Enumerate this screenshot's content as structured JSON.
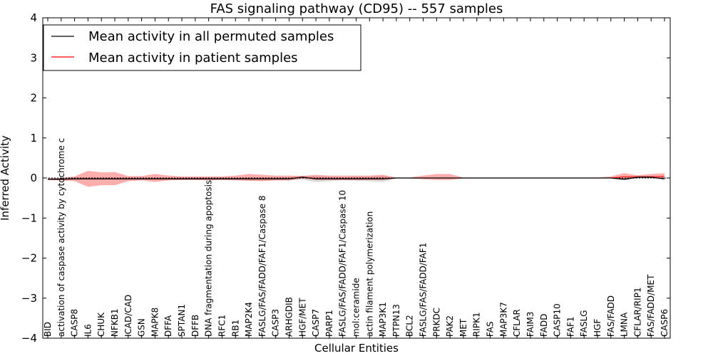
{
  "chart_data": {
    "type": "line",
    "title": "FAS signaling pathway (CD95) -- 557 samples",
    "xlabel": "Cellular Entities",
    "ylabel": "Inferred Activity",
    "ylim": [
      -4,
      4
    ],
    "yticks": [
      "−4",
      "−3",
      "−2",
      "−1",
      "0",
      "1",
      "2",
      "3",
      "4"
    ],
    "ytick_values": [
      -4,
      -3,
      -2,
      -1,
      0,
      1,
      2,
      3,
      4
    ],
    "legend_position": "top-left",
    "categories": [
      "BID",
      "activation of caspase activity by cytochrome c",
      "CASP8",
      "IL6",
      "CHUK",
      "NFKB1",
      "ICAD/CAD",
      "GSN",
      "MAPK8",
      "DFFA",
      "SPTAN1",
      "DFFB",
      "DNA fragmentation during apoptosis",
      "RFC1",
      "RB1",
      "MAP2K4",
      "FASLG/FAS/FADD/FAF1/Caspase 8",
      "CASP3",
      "ARHGDIB",
      "HGF/MET",
      "CASP7",
      "PARP1",
      "FASLG/FAS/FADD/FAF1/Caspase 10",
      "mol:ceramide",
      "actin filament polymerization",
      "MAP3K1",
      "PTPN13",
      "BCL2",
      "FASLG/FAS/FADD/FAF1",
      "PRKDC",
      "PAK2",
      "MET",
      "RIPK1",
      "FAS",
      "MAP3K7",
      "CFLAR",
      "FAIM3",
      "FADD",
      "CASP10",
      "FAF1",
      "FASLG",
      "HGF",
      "FAS/FADD",
      "LMNA",
      "CFLAR/RIP1",
      "FAS/FADD/MET",
      "CASP6"
    ],
    "series": [
      {
        "name": "Mean activity in all permuted samples",
        "color": "#000000",
        "values": [
          -0.03,
          -0.03,
          -0.02,
          -0.02,
          -0.02,
          -0.02,
          -0.02,
          -0.02,
          -0.02,
          -0.02,
          -0.02,
          -0.02,
          -0.02,
          -0.02,
          -0.02,
          -0.02,
          -0.02,
          -0.02,
          -0.02,
          0.02,
          -0.02,
          -0.02,
          -0.02,
          -0.02,
          -0.02,
          -0.02,
          0.0,
          0.0,
          0.0,
          0.0,
          0.0,
          0.0,
          0.0,
          0.0,
          0.0,
          0.0,
          0.0,
          0.0,
          0.0,
          0.0,
          0.0,
          0.0,
          0.0,
          -0.03,
          0.02,
          0.02,
          -0.02
        ],
        "lower": [
          -0.04,
          -0.06,
          -0.05,
          -0.05,
          -0.05,
          -0.05,
          -0.05,
          -0.05,
          -0.05,
          -0.05,
          -0.05,
          -0.05,
          -0.05,
          -0.05,
          -0.05,
          -0.07,
          -0.06,
          -0.06,
          -0.06,
          -0.04,
          -0.1,
          -0.08,
          -0.06,
          -0.07,
          -0.08,
          -0.1,
          -0.01,
          -0.01,
          -0.01,
          -0.01,
          -0.01,
          -0.01,
          -0.01,
          -0.01,
          -0.01,
          -0.01,
          -0.01,
          -0.01,
          -0.01,
          -0.01,
          -0.01,
          -0.01,
          -0.01,
          -0.06,
          -0.01,
          -0.01,
          -0.05
        ],
        "upper": [
          -0.02,
          0.01,
          0.01,
          0.01,
          0.01,
          0.01,
          0.01,
          0.01,
          0.01,
          0.01,
          0.01,
          0.01,
          0.01,
          0.01,
          0.01,
          0.02,
          0.02,
          0.02,
          0.02,
          0.06,
          0.04,
          0.03,
          0.02,
          0.03,
          0.03,
          0.05,
          0.01,
          0.01,
          0.01,
          0.01,
          0.01,
          0.01,
          0.01,
          0.01,
          0.01,
          0.01,
          0.01,
          0.01,
          0.01,
          0.01,
          0.01,
          0.01,
          0.01,
          0.0,
          0.05,
          0.05,
          0.02
        ]
      },
      {
        "name": "Mean activity in patient samples",
        "color": "#ff0000",
        "values": [
          -0.03,
          -0.03,
          -0.02,
          -0.02,
          -0.02,
          -0.02,
          -0.02,
          -0.02,
          -0.02,
          -0.02,
          -0.02,
          -0.02,
          -0.02,
          -0.02,
          -0.02,
          -0.02,
          -0.02,
          -0.02,
          -0.02,
          0.02,
          -0.02,
          -0.02,
          -0.02,
          -0.02,
          -0.02,
          -0.02,
          0.0,
          0.0,
          0.0,
          0.0,
          0.0,
          0.0,
          0.0,
          0.0,
          0.0,
          0.0,
          0.0,
          0.0,
          0.0,
          0.0,
          0.0,
          0.0,
          0.0,
          0.03,
          0.03,
          0.03,
          0.04
        ],
        "lower": [
          -0.05,
          -0.06,
          -0.08,
          -0.22,
          -0.18,
          -0.18,
          -0.08,
          -0.06,
          -0.1,
          -0.06,
          -0.05,
          -0.05,
          -0.06,
          -0.05,
          -0.06,
          -0.07,
          -0.08,
          -0.06,
          -0.06,
          -0.01,
          -0.05,
          -0.05,
          -0.05,
          -0.05,
          -0.05,
          -0.05,
          -0.01,
          -0.01,
          -0.03,
          -0.05,
          -0.05,
          -0.01,
          -0.01,
          -0.01,
          -0.01,
          -0.01,
          -0.01,
          -0.01,
          -0.01,
          -0.01,
          -0.01,
          -0.01,
          0.0,
          -0.02,
          0.0,
          0.0,
          -0.01
        ],
        "upper": [
          -0.01,
          0.0,
          0.04,
          0.18,
          0.14,
          0.15,
          0.05,
          0.05,
          0.1,
          0.06,
          0.04,
          0.04,
          0.04,
          0.04,
          0.06,
          0.1,
          0.08,
          0.06,
          0.06,
          0.05,
          0.08,
          0.06,
          0.06,
          0.06,
          0.06,
          0.08,
          0.01,
          0.01,
          0.06,
          0.1,
          0.1,
          0.01,
          0.01,
          0.01,
          0.01,
          0.01,
          0.01,
          0.01,
          0.01,
          0.01,
          0.01,
          0.01,
          0.04,
          0.12,
          0.07,
          0.1,
          0.12
        ]
      }
    ]
  }
}
